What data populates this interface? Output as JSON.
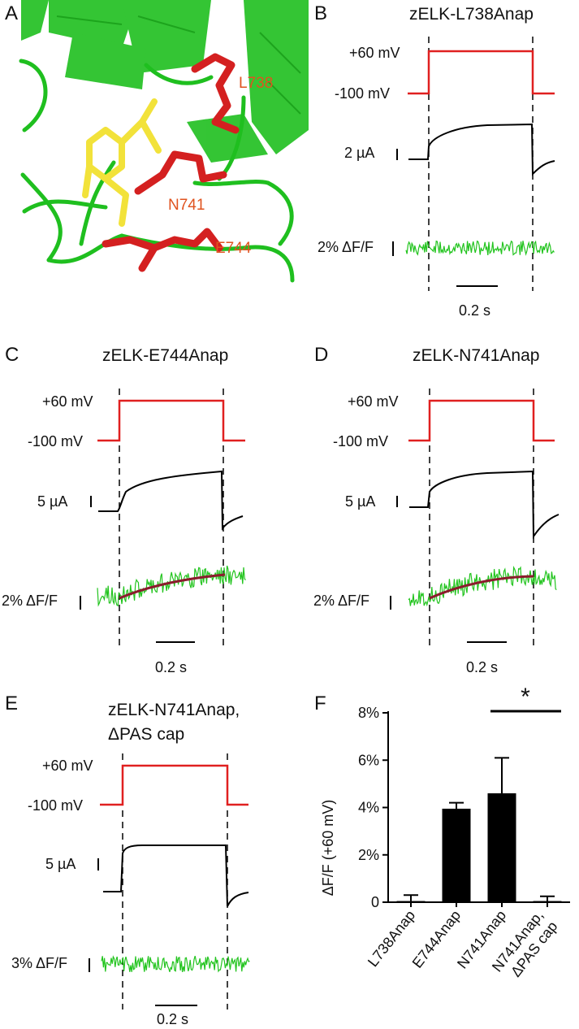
{
  "panels": {
    "A": {
      "letter": "A",
      "residues": [
        "L738",
        "N741",
        "E744"
      ]
    },
    "B": {
      "letter": "B",
      "title": "zELK-L738Anap",
      "voltage_high": "+60 mV",
      "voltage_low": "-100 mV",
      "current_scale": "2 µA",
      "fluor_scale": "2% ΔF/F",
      "time_scale": "0.2 s"
    },
    "C": {
      "letter": "C",
      "title": "zELK-E744Anap",
      "voltage_high": "+60 mV",
      "voltage_low": "-100 mV",
      "current_scale": "5 µA",
      "fluor_scale": "2% ΔF/F",
      "time_scale": "0.2 s"
    },
    "D": {
      "letter": "D",
      "title": "zELK-N741Anap",
      "voltage_high": "+60 mV",
      "voltage_low": "-100 mV",
      "current_scale": "5 µA",
      "fluor_scale": "2% ΔF/F",
      "time_scale": "0.2 s"
    },
    "E": {
      "letter": "E",
      "title_line1": "zELK-N741Anap,",
      "title_line2": "ΔPAS cap",
      "voltage_high": "+60 mV",
      "voltage_low": "-100 mV",
      "current_scale": "5 µA",
      "fluor_scale": "3% ΔF/F",
      "time_scale": "0.2 s"
    },
    "F": {
      "letter": "F",
      "significance": "*"
    }
  },
  "chart_data": {
    "type": "bar",
    "categories": [
      "L738Anap",
      "E744Anap",
      "N741Anap",
      "N741Anap, ΔPAS cap"
    ],
    "category_lines": [
      [
        "L738Anap"
      ],
      [
        "E744Anap"
      ],
      [
        "N741Anap"
      ],
      [
        "N741Anap,",
        "ΔPAS cap"
      ]
    ],
    "values": [
      0.05,
      3.95,
      4.6,
      0.05
    ],
    "errors": [
      0.25,
      0.25,
      1.5,
      0.2
    ],
    "ylabel": "ΔF/F (+60 mV)",
    "ylim": [
      0,
      8
    ],
    "yticks": [
      0,
      2,
      4,
      6,
      8
    ],
    "ytick_labels": [
      "0",
      "2%",
      "4%",
      "6%",
      "8%"
    ],
    "bar_color": "#000000",
    "grid": false
  },
  "colors": {
    "voltage": "#e02020",
    "current": "#000000",
    "fluorescence": "#22c41e",
    "fit": "#8b1c2c",
    "residue": "#d42020",
    "ligand": "#f2e23a",
    "protein": "#1fbf1f",
    "residue_label": "#e0531f"
  }
}
